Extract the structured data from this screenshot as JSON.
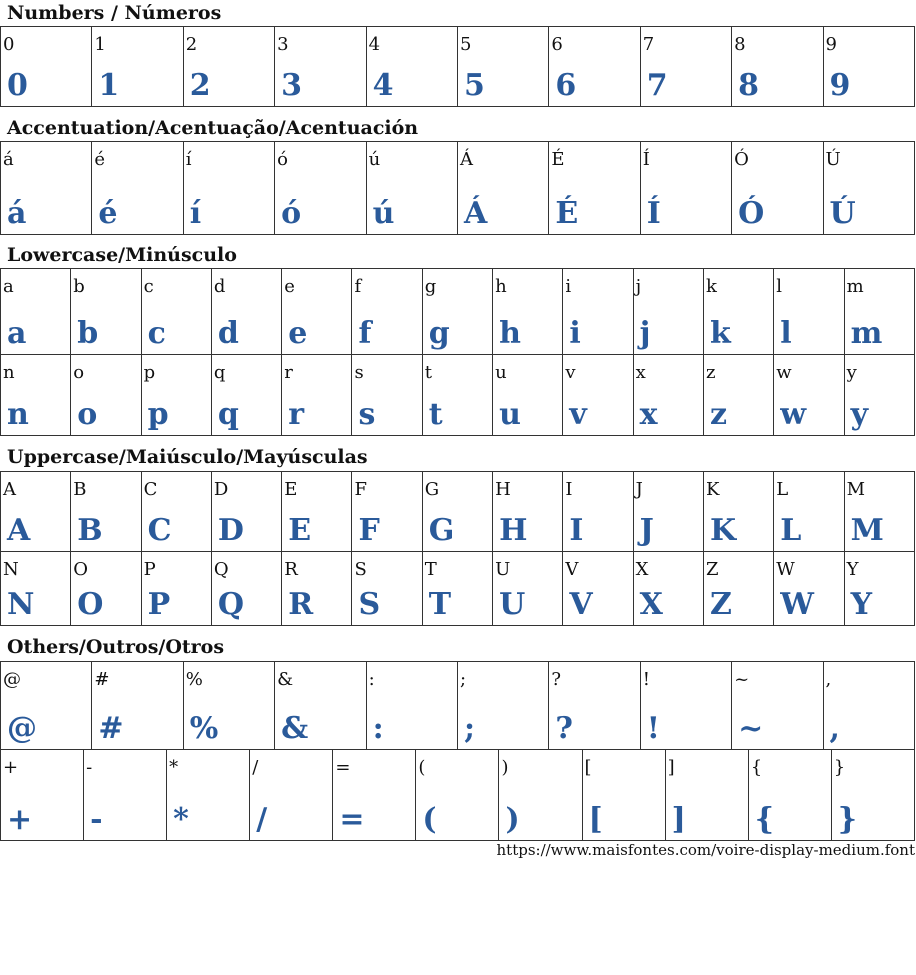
{
  "sections": [
    {
      "title": "Numbers / Números",
      "rows": [
        [
          "0",
          "1",
          "2",
          "3",
          "4",
          "5",
          "6",
          "7",
          "8",
          "9"
        ]
      ]
    },
    {
      "title": "Accentuation/Acentuação/Acentuación",
      "rows": [
        [
          "á",
          "é",
          "í",
          "ó",
          "ú",
          "Á",
          "É",
          "Í",
          "Ó",
          "Ú"
        ]
      ]
    },
    {
      "title": "Lowercase/Minúsculo",
      "rows": [
        [
          "a",
          "b",
          "c",
          "d",
          "e",
          "f",
          "g",
          "h",
          "i",
          "j",
          "k",
          "l",
          "m"
        ],
        [
          "n",
          "o",
          "p",
          "q",
          "r",
          "s",
          "t",
          "u",
          "v",
          "x",
          "z",
          "w",
          "y"
        ]
      ]
    },
    {
      "title": "Uppercase/Maiúsculo/Mayúsculas",
      "rows": [
        [
          "A",
          "B",
          "C",
          "D",
          "E",
          "F",
          "G",
          "H",
          "I",
          "J",
          "K",
          "L",
          "M"
        ],
        [
          "N",
          "O",
          "P",
          "Q",
          "R",
          "S",
          "T",
          "U",
          "V",
          "X",
          "Z",
          "W",
          "Y"
        ]
      ]
    },
    {
      "title": "Others/Outros/Otros",
      "rows": [
        [
          "@",
          "#",
          "%",
          "&",
          ":",
          ";",
          "?",
          "!",
          "~",
          ","
        ]
      ]
    },
    {
      "title": "",
      "rows": [
        [
          "+",
          "-",
          "*",
          "/",
          "=",
          "(",
          ")",
          "[",
          "]",
          "{",
          "}"
        ]
      ]
    }
  ],
  "footer": {
    "url": "https://www.maisfontes.com/voire-display-medium.font"
  },
  "colors": {
    "glyph": "#2a5a9a",
    "border": "#333333"
  }
}
